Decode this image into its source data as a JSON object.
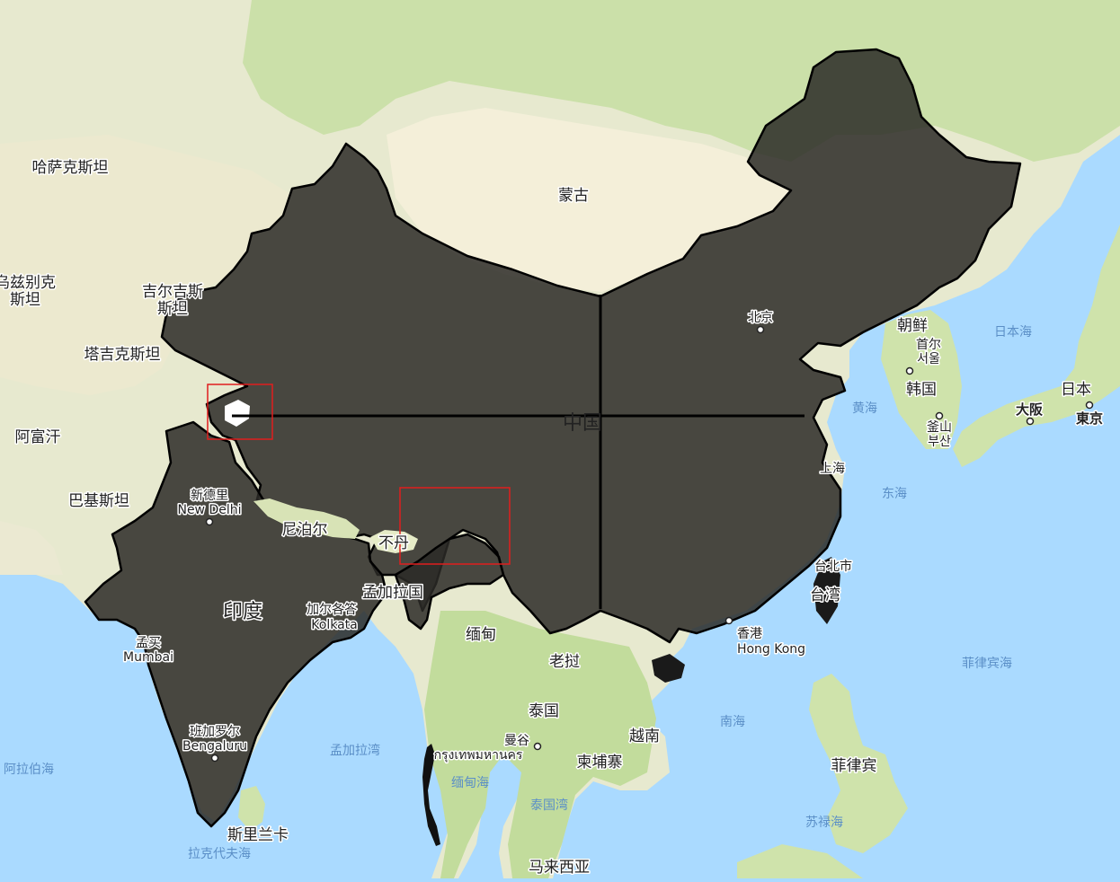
{
  "map": {
    "colors": {
      "sea": "#aadaff",
      "land": "#e7e9cf",
      "forest": "#b9d99a",
      "desert": "#f4efd9",
      "overlay": "#2b2a27",
      "overlay_border": "#000000",
      "highlight": "#e01e1e"
    },
    "labels": {
      "kazakhstan": "哈萨克斯坦",
      "mongolia": "蒙古",
      "uzbekistan_1": "乌兹别克",
      "uzbekistan_2": "斯坦",
      "kyrgyzstan_1": "吉尔吉斯",
      "kyrgyzstan_2": "斯坦",
      "tajikistan": "塔吉克斯坦",
      "afghanistan": "阿富汗",
      "pakistan": "巴基斯坦",
      "china": "中国",
      "beijing": "北京",
      "north_korea": "朝鲜",
      "seoul_1": "首尔",
      "seoul_2": "서울",
      "south_korea": "韩国",
      "sea_of_japan": "日本海",
      "japan": "日本",
      "osaka": "大阪",
      "tokyo": "東京",
      "yellow_sea": "黄海",
      "busan_1": "釜山",
      "busan_2": "부산",
      "shanghai": "上海",
      "east_china_sea": "东海",
      "new_delhi_1": "新德里",
      "new_delhi_2": "New Delhi",
      "nepal": "尼泊尔",
      "bhutan": "不丹",
      "bangladesh": "孟加拉国",
      "india": "印度",
      "kolkata_1": "加尔各答",
      "kolkata_2": "Kolkata",
      "mumbai_1": "孟买",
      "mumbai_2": "Mumbai",
      "myanmar": "缅甸",
      "laos": "老挝",
      "taipei": "台北市",
      "taiwan": "台湾",
      "hong_kong_1": "香港",
      "hong_kong_2": "Hong Kong",
      "philippine_sea": "菲律宾海",
      "south_china_sea": "南海",
      "thailand": "泰国",
      "vietnam": "越南",
      "bangkok_1": "曼谷",
      "bangkok_2": "กรุงเทพมหานคร",
      "cambodia": "柬埔寨",
      "philippines": "菲律宾",
      "bengaluru_1": "班加罗尔",
      "bengaluru_2": "Bengaluru",
      "bay_of_bengal": "孟加拉湾",
      "arabian_sea": "阿拉伯海",
      "andaman_sea": "缅甸海",
      "gulf_of_thailand": "泰国湾",
      "sulu_sea": "苏禄海",
      "sri_lanka": "斯里兰卡",
      "laccadive_sea": "拉克代夫海",
      "malaysia": "马来西亚"
    }
  }
}
